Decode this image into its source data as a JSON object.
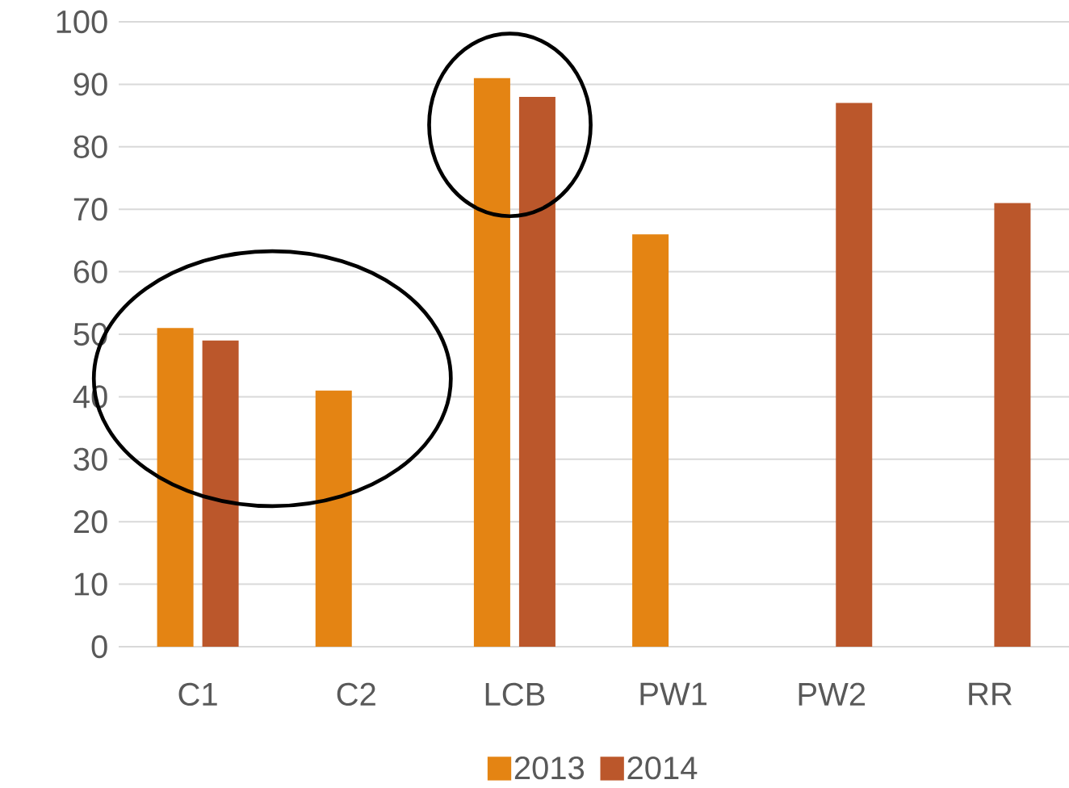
{
  "chart_data": {
    "type": "bar",
    "categories": [
      "C1",
      "C2",
      "LCB",
      "PW1",
      "PW2",
      "RR"
    ],
    "series": [
      {
        "name": "2013",
        "color": "#e48413",
        "values": [
          51,
          41,
          91,
          66,
          null,
          null
        ]
      },
      {
        "name": "2014",
        "color": "#bb572b",
        "values": [
          49,
          null,
          88,
          null,
          87,
          71
        ]
      }
    ],
    "ylim": [
      0,
      100
    ],
    "yticks": [
      0,
      10,
      20,
      30,
      40,
      50,
      60,
      70,
      80,
      90,
      100
    ],
    "grid": "y",
    "legend": "bottom"
  }
}
